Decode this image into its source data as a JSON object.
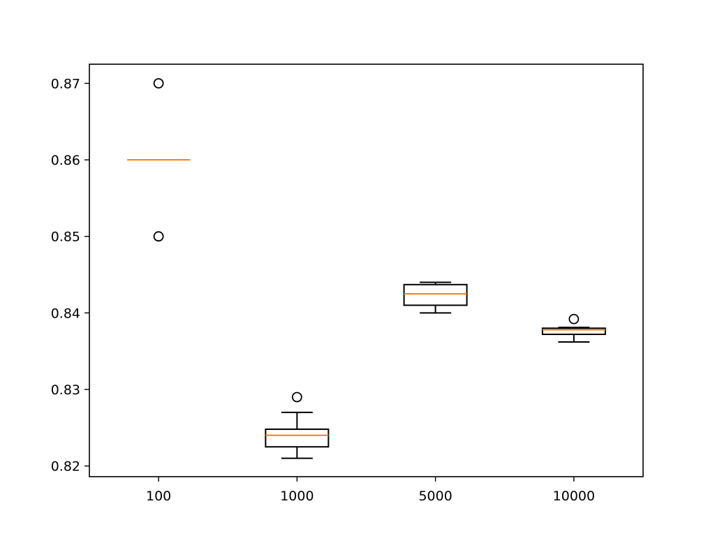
{
  "chart_data": {
    "type": "box",
    "categories": [
      "100",
      "1000",
      "5000",
      "10000"
    ],
    "ylim": [
      0.8186,
      0.8725
    ],
    "yticks": [
      0.82,
      0.83,
      0.84,
      0.85,
      0.86,
      0.87
    ],
    "ytick_labels": [
      "0.82",
      "0.83",
      "0.84",
      "0.85",
      "0.86",
      "0.87"
    ],
    "grid": false,
    "title": "",
    "xlabel": "",
    "ylabel": "",
    "boxes": [
      {
        "category": "100",
        "whislo": 0.86,
        "q1": 0.86,
        "med": 0.86,
        "q3": 0.86,
        "whishi": 0.86,
        "fliers": [
          0.87,
          0.85
        ]
      },
      {
        "category": "1000",
        "whislo": 0.821,
        "q1": 0.8225,
        "med": 0.824,
        "q3": 0.8248,
        "whishi": 0.827,
        "fliers": [
          0.829
        ]
      },
      {
        "category": "5000",
        "whislo": 0.84,
        "q1": 0.841,
        "med": 0.8425,
        "q3": 0.8437,
        "whishi": 0.844,
        "fliers": []
      },
      {
        "category": "10000",
        "whislo": 0.8362,
        "q1": 0.8372,
        "med": 0.8378,
        "q3": 0.838,
        "whishi": 0.8381,
        "fliers": [
          0.8392
        ]
      }
    ],
    "colors": {
      "box": "#000000",
      "median": "#ff7f0e",
      "flier": "#000000"
    }
  }
}
